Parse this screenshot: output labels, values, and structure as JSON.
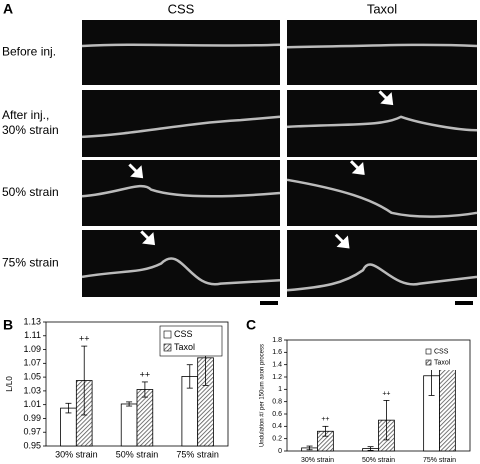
{
  "figure_a": {
    "label": "A",
    "columns": [
      "CSS",
      "Taxol"
    ],
    "rows": [
      [
        "Before inj."
      ],
      [
        "After inj.,",
        "30% strain"
      ],
      [
        "50% strain"
      ],
      [
        "75% strain"
      ]
    ]
  },
  "chart_data": [
    {
      "type": "bar",
      "label": "B",
      "ylabel": "L/L0",
      "categories": [
        "30% strain",
        "50% strain",
        "75% strain"
      ],
      "series": [
        {
          "name": "CSS",
          "color": "#ffffff",
          "values": [
            1.005,
            1.011,
            1.051
          ],
          "errors": [
            0.007,
            0.003,
            0.017
          ]
        },
        {
          "name": "Taxol",
          "color": "#777777",
          "hatch": true,
          "values": [
            1.045,
            1.032,
            1.078
          ],
          "errors": [
            0.05,
            0.011,
            0.04
          ],
          "significance": [
            "++",
            "++",
            null
          ]
        }
      ],
      "ylim": [
        0.95,
        1.13
      ],
      "yticks": [
        0.95,
        0.97,
        0.99,
        1.01,
        1.03,
        1.05,
        1.07,
        1.09,
        1.11,
        1.13
      ],
      "grid": false,
      "legend": "upper right"
    },
    {
      "type": "bar",
      "label": "C",
      "ylabel": "Undulation #/ per 150um axon process",
      "categories": [
        "30% strain",
        "50% strain",
        "75% strain"
      ],
      "series": [
        {
          "name": "CSS",
          "color": "#ffffff",
          "values": [
            0.05,
            0.04,
            1.22
          ],
          "errors": [
            0.03,
            0.03,
            0.32
          ]
        },
        {
          "name": "Taxol",
          "color": "#777777",
          "hatch": true,
          "values": [
            0.32,
            0.5,
            1.4
          ],
          "errors": [
            0.08,
            0.32,
            0.03
          ],
          "significance": [
            "++",
            "++",
            null
          ]
        }
      ],
      "ylim": [
        0,
        1.8
      ],
      "yticks": [
        0,
        0.2,
        0.4,
        0.6,
        0.8,
        1,
        1.2,
        1.4,
        1.6,
        1.8
      ],
      "grid": false,
      "legend": "upper right"
    }
  ]
}
